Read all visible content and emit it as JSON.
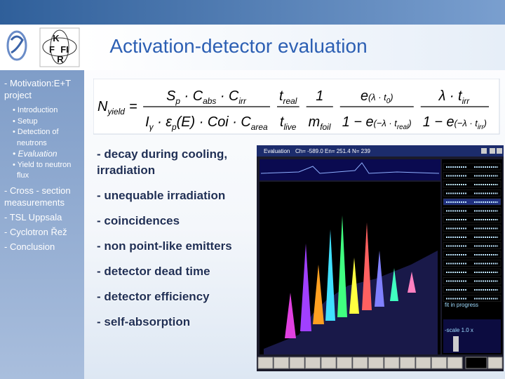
{
  "header": {
    "title": "Activation-detector evaluation",
    "logo_letters": [
      "K",
      "F",
      "FI",
      "R"
    ]
  },
  "sidebar": {
    "main": [
      "- Motivation:E+T project",
      "- Cross - section measurements",
      "- TSL Uppsala",
      "- Cyclotron Řež",
      "- Conclusion"
    ],
    "sub": [
      "• Introduction",
      "• Setup",
      "• Detection of neutrons",
      "• Evaluation",
      "• Yield to neutron flux"
    ]
  },
  "formula": {
    "lhs": [
      "N",
      "yield"
    ],
    "eq": "=",
    "fractions": [
      {
        "num": {
          "text": [
            "S",
            "p",
            " · C",
            "abs",
            " · C",
            "irr"
          ]
        },
        "den": {
          "text": [
            "I",
            "γ",
            " · ε",
            "p",
            "(E) · Coi · C",
            "area"
          ]
        }
      },
      {
        "num": {
          "text": [
            "t",
            "real"
          ]
        },
        "den": {
          "text": [
            "t",
            "live"
          ]
        }
      },
      {
        "num": {
          "text": [
            "1"
          ]
        },
        "den": {
          "text": [
            "m",
            "foil"
          ]
        }
      },
      {
        "num": {
          "text": [
            "e"
          ],
          "sup": [
            "(λ · t",
            "0",
            ")"
          ]
        },
        "den": {
          "text": [
            "1 − e"
          ],
          "sup": [
            "(−λ · t",
            "real",
            ")"
          ]
        }
      },
      {
        "num": {
          "text": [
            "λ · t",
            "irr"
          ]
        },
        "den": {
          "text": [
            "1 − e"
          ],
          "sup": [
            "(−λ · t",
            "irr",
            ")"
          ]
        }
      }
    ]
  },
  "bullets": [
    "- decay during cooling, irradiation",
    "- unequable  irradiation",
    "- coincidences",
    "- non point-like emitters",
    "- detector dead time",
    "- detector efficiency",
    "- self-absorption"
  ],
  "screenshot": {
    "window_title": "Evaluation",
    "status": "Ch= -589.0  En= 251.4  N=  239",
    "progress": "fit in progress",
    "scale": "-scale  1.0 x"
  }
}
